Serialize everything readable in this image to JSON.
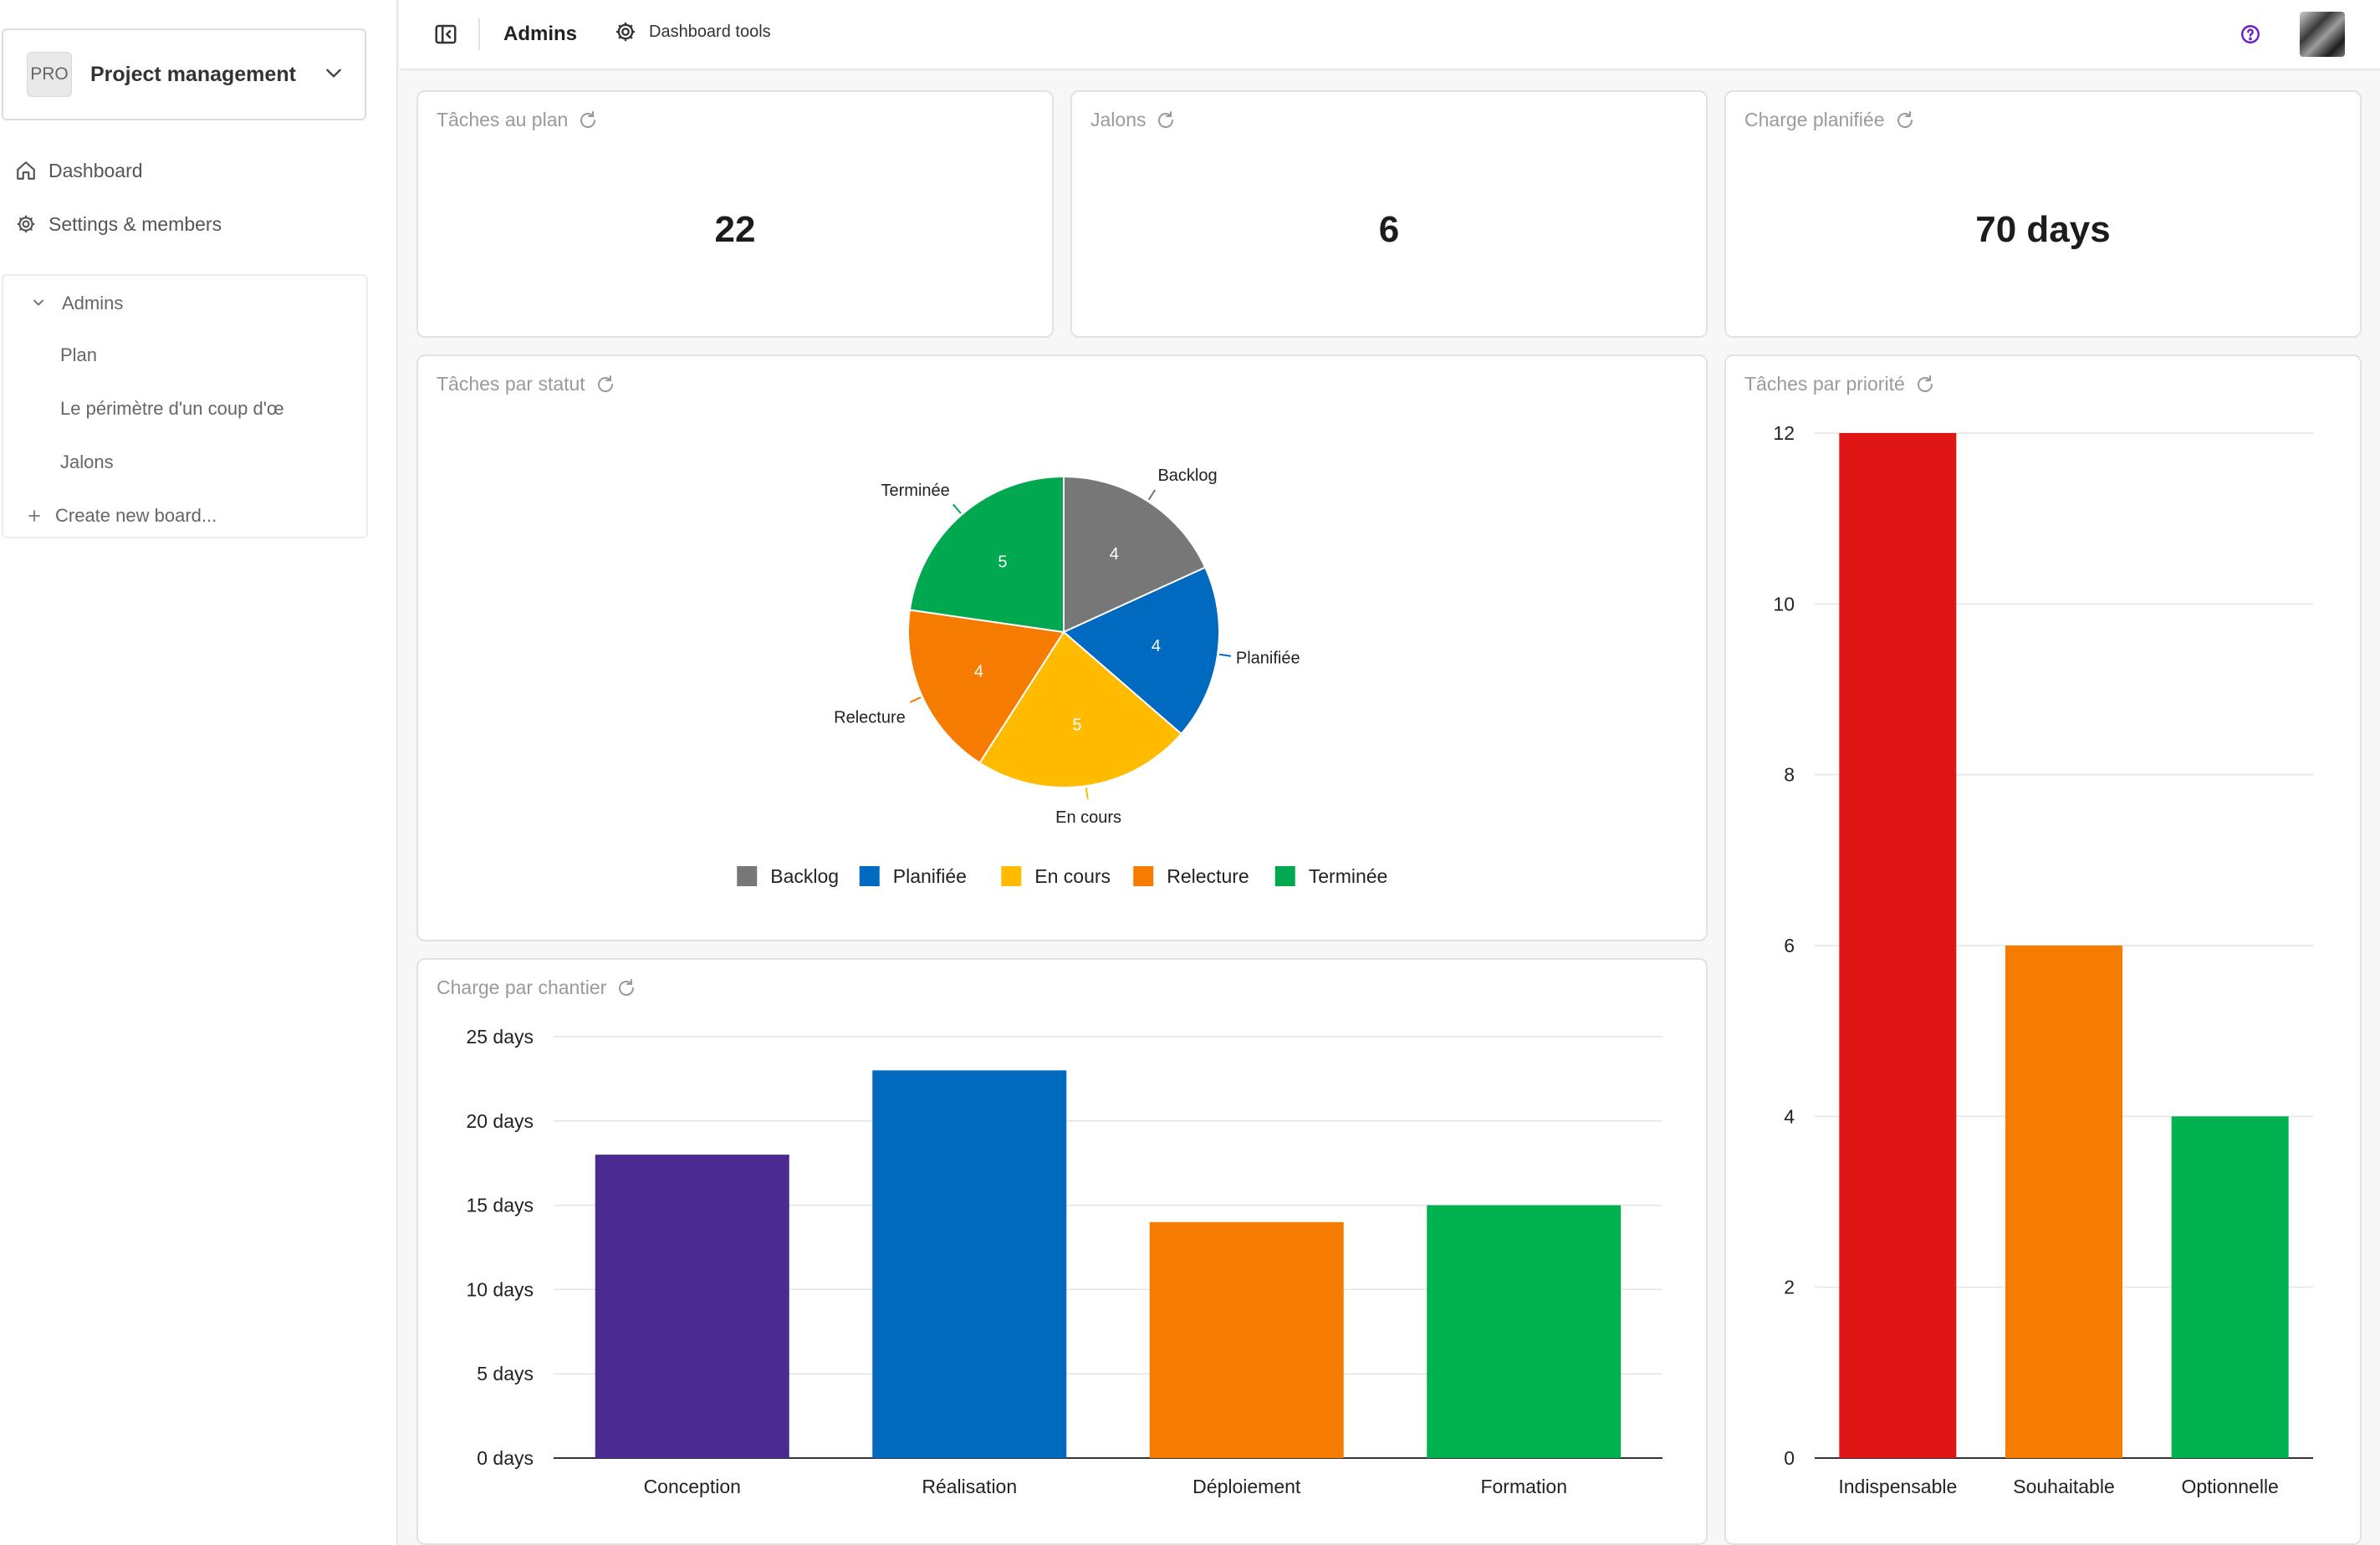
{
  "sidebar": {
    "project_badge": "PRO",
    "project_name": "Project management",
    "nav": [
      {
        "label": "Dashboard",
        "icon": "home-icon"
      },
      {
        "label": "Settings & members",
        "icon": "gear-icon"
      }
    ],
    "boards_group": "Admins",
    "boards": [
      "Plan",
      "Le périmètre d'un coup d'œ",
      "Jalons"
    ],
    "create_board": "Create new board..."
  },
  "header": {
    "title": "Admins",
    "tools_label": "Dashboard tools",
    "help_icon": "help-circle-icon",
    "accent_color": "#6a1bd1"
  },
  "kpis": [
    {
      "title": "Tâches au plan",
      "value": "22"
    },
    {
      "title": "Jalons",
      "value": "6"
    },
    {
      "title": "Charge planifiée",
      "value": "70 days"
    }
  ],
  "chart_data": [
    {
      "type": "pie",
      "title": "Tâches par statut",
      "categories": [
        "Backlog",
        "Planifiée",
        "En cours",
        "Relecture",
        "Terminée"
      ],
      "values": [
        4,
        4,
        5,
        4,
        5
      ],
      "colors": [
        "#777777",
        "#0069c0",
        "#ffbb00",
        "#f57c00",
        "#00a94f"
      ],
      "legend": "bottom"
    },
    {
      "type": "bar",
      "title": "Charge par chantier",
      "categories": [
        "Conception",
        "Réalisation",
        "Déploiement",
        "Formation"
      ],
      "values": [
        18,
        23,
        14,
        15
      ],
      "colors": [
        "#4b2a91",
        "#006abf",
        "#f57c00",
        "#00b14f"
      ],
      "ylim": [
        0,
        25
      ],
      "yticks": [
        "0 days",
        "5 days",
        "10 days",
        "15 days",
        "20 days",
        "25 days"
      ],
      "grid": true
    },
    {
      "type": "bar",
      "title": "Tâches par priorité",
      "categories": [
        "Indispensable",
        "Souhaitable",
        "Optionnelle"
      ],
      "values": [
        12,
        6,
        4
      ],
      "colors": [
        "#e01616",
        "#f57c00",
        "#00b14f"
      ],
      "ylim": [
        0,
        12
      ],
      "yticks": [
        "0",
        "2",
        "4",
        "6",
        "8",
        "10",
        "12"
      ],
      "grid": true
    }
  ]
}
